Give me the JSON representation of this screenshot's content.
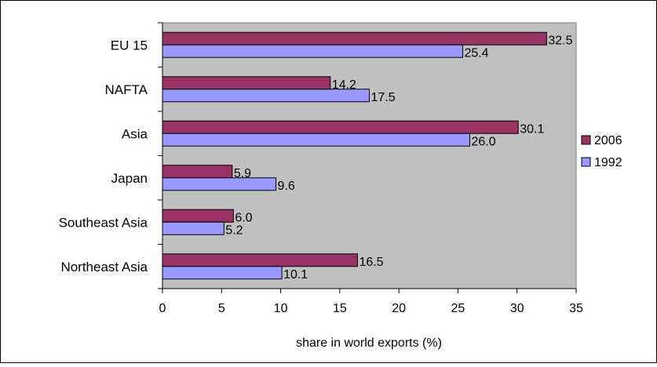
{
  "chart_data": {
    "type": "bar",
    "orientation": "horizontal",
    "title": "",
    "xlabel": "share in world exports (%)",
    "ylabel": "",
    "xlim": [
      0,
      35
    ],
    "x_ticks": [
      "0",
      "5",
      "10",
      "15",
      "20",
      "25",
      "30",
      "35"
    ],
    "categories": [
      "EU 15",
      "NAFTA",
      "Asia",
      "Japan",
      "Southeast Asia",
      "Northeast Asia"
    ],
    "series": [
      {
        "name": "2006",
        "color": "#993366",
        "values": [
          32.5,
          14.2,
          30.1,
          5.9,
          6.0,
          16.5
        ],
        "labels": [
          "32.5",
          "14.2",
          "30.1",
          "5.9",
          "6.0",
          "16.5"
        ]
      },
      {
        "name": "1992",
        "color": "#9999FF",
        "values": [
          25.4,
          17.5,
          26.0,
          9.6,
          5.2,
          10.1
        ],
        "labels": [
          "25.4",
          "17.5",
          "26.0",
          "9.6",
          "5.2",
          "10.1"
        ]
      }
    ],
    "plot_background": "#C0C0C0",
    "grid": false,
    "legend_position": "right"
  }
}
